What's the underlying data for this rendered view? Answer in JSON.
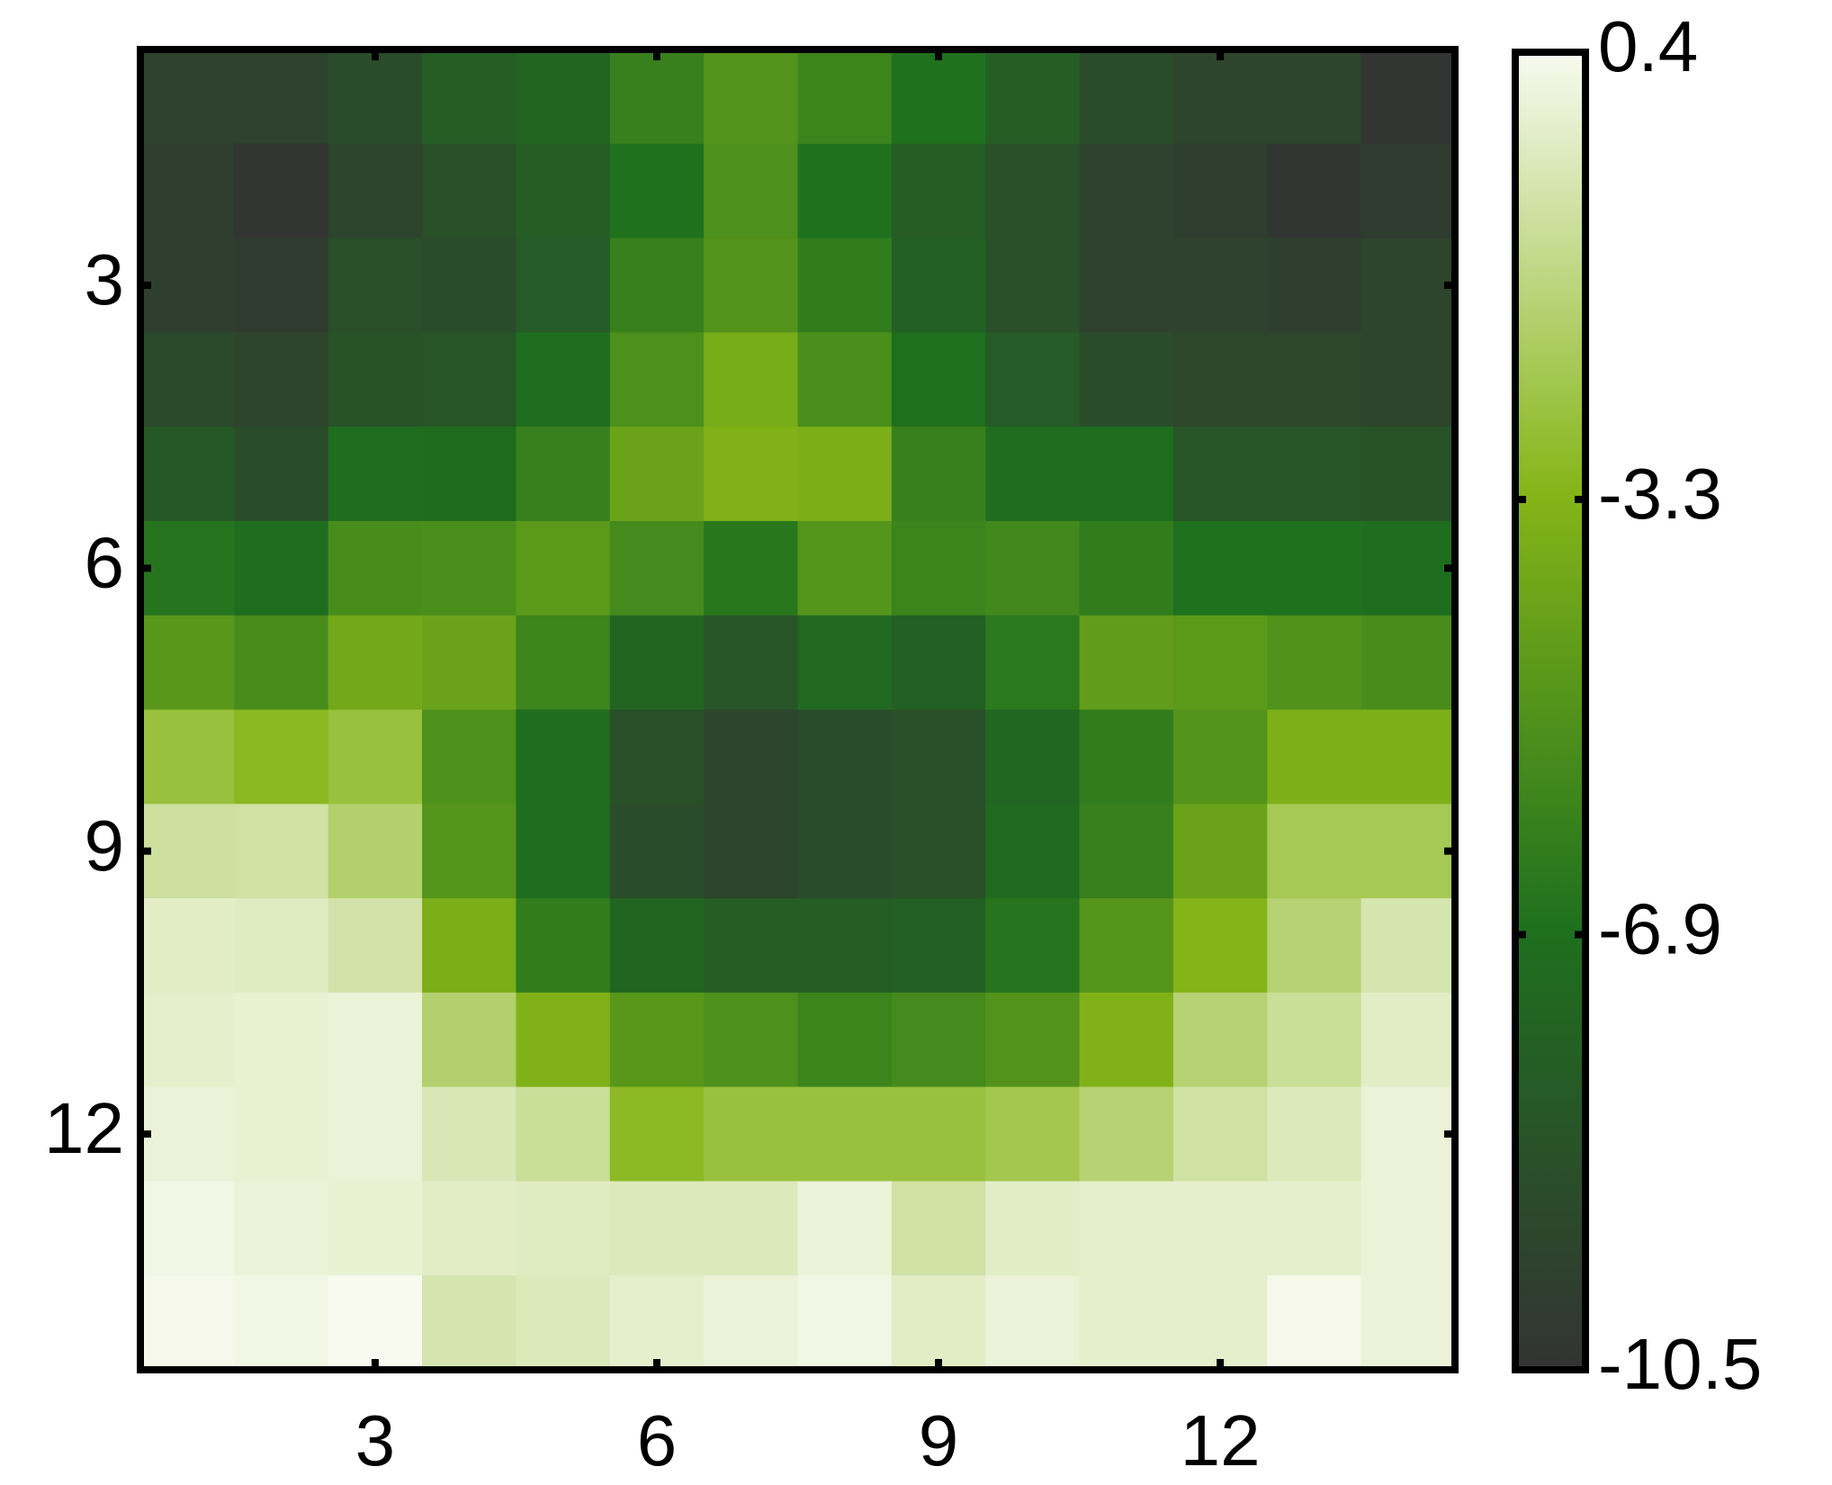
{
  "chart_data": {
    "type": "heatmap",
    "xlim": [
      0.5,
      14.5
    ],
    "ylim": [
      0.5,
      14.5
    ],
    "y_reversed": true,
    "xticks": [
      3,
      6,
      9,
      12
    ],
    "yticks": [
      3,
      6,
      9,
      12
    ],
    "zlim": [
      -10.5,
      0.4
    ],
    "colorbar_ticks": [
      0.4,
      -3.3,
      -6.9,
      -10.5
    ],
    "colormap": [
      "#333333",
      "#1e701e",
      "#85b518",
      "#f8faf0"
    ],
    "z": [
      [
        -9.6,
        -9.6,
        -9,
        -8,
        -7.6,
        -6,
        -5,
        -5.8,
        -6.8,
        -8,
        -9,
        -9.5,
        -9.5,
        -10.4
      ],
      [
        -9.8,
        -10.4,
        -9.5,
        -8.8,
        -8,
        -6.8,
        -5.2,
        -6.8,
        -8,
        -8.8,
        -9.6,
        -9.8,
        -10.3,
        -10
      ],
      [
        -9.8,
        -10,
        -8.8,
        -9,
        -8.2,
        -6,
        -5,
        -6.2,
        -7.8,
        -8.8,
        -9.6,
        -9.6,
        -9.8,
        -9.5
      ],
      [
        -9.2,
        -9.5,
        -8.6,
        -8.5,
        -7,
        -5.2,
        -3.7,
        -5.3,
        -6.9,
        -8.2,
        -9,
        -9.3,
        -9.3,
        -9.5
      ],
      [
        -8.3,
        -9,
        -7,
        -7.1,
        -6,
        -4.2,
        -3.4,
        -3.6,
        -6,
        -7,
        -7,
        -8.5,
        -8.5,
        -8.6
      ],
      [
        -6.6,
        -7,
        -5.4,
        -5.3,
        -4.7,
        -5.5,
        -6.5,
        -4.9,
        -5.8,
        -5.6,
        -6.2,
        -6.8,
        -6.8,
        -7
      ],
      [
        -4.8,
        -5.4,
        -3.9,
        -4.2,
        -5.8,
        -7.5,
        -8.5,
        -7.3,
        -7.8,
        -6.4,
        -4.5,
        -4.7,
        -5.1,
        -5.4
      ],
      [
        -2.6,
        -3.1,
        -2.6,
        -5.2,
        -7,
        -8.8,
        -9.4,
        -9,
        -8.8,
        -7.4,
        -6.2,
        -5,
        -3.5,
        -3.5
      ],
      [
        -1,
        -0.9,
        -1.8,
        -4.9,
        -7,
        -9,
        -9.4,
        -9,
        -8.8,
        -7.2,
        -6,
        -4.2,
        -2.2,
        -2.2
      ],
      [
        -0.3,
        -0.4,
        -0.8,
        -3.6,
        -6.2,
        -7.6,
        -8,
        -8,
        -7.8,
        -6.6,
        -4.9,
        -3.3,
        -1.7,
        -0.7
      ],
      [
        -0.2,
        -0.1,
        0,
        -1.8,
        -3.4,
        -4.8,
        -5.2,
        -5.8,
        -5.5,
        -5,
        -3.4,
        -1.7,
        -1.1,
        -0.3
      ],
      [
        0,
        -0.1,
        0,
        -0.6,
        -1.1,
        -3,
        -2.6,
        -2.6,
        -2.6,
        -2.3,
        -1.7,
        -0.9,
        -0.5,
        0
      ],
      [
        0.2,
        0,
        -0.1,
        -0.3,
        -0.4,
        -0.5,
        -0.5,
        0,
        -0.9,
        -0.3,
        -0.2,
        -0.2,
        -0.2,
        0
      ],
      [
        0.3,
        0.2,
        0.4,
        -0.7,
        -0.5,
        -0.2,
        0,
        0.2,
        -0.3,
        0,
        -0.2,
        -0.2,
        0.3,
        0
      ]
    ]
  }
}
